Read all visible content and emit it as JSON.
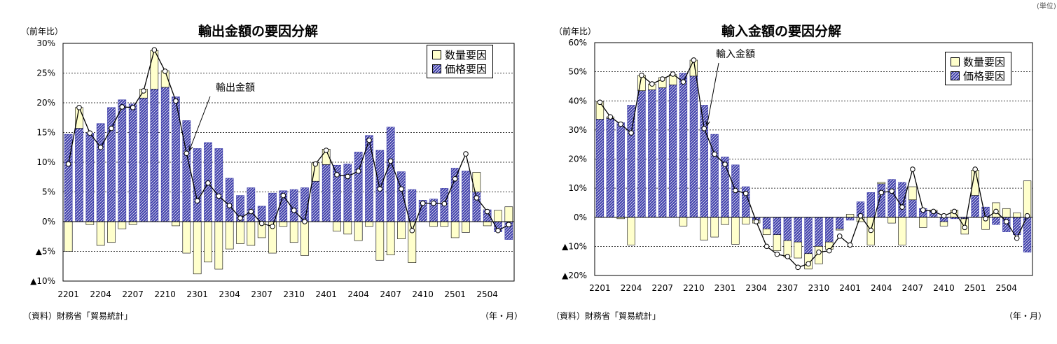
{
  "colors": {
    "volume": "#FFFFCC",
    "price": "#3A3AA8",
    "line": "#000000",
    "marker": "#FFFFFF",
    "grid": "#000000"
  },
  "corner_mark": "(単位)",
  "chart_data": [
    {
      "type": "bar",
      "title": "輸出金額の要因分解",
      "ylabel": "（前年比）",
      "xlabel": "（年・月）",
      "source": "（資料）財務省「貿易統計」",
      "ylim": [
        -10,
        30
      ],
      "yticks": [
        30,
        25,
        20,
        15,
        10,
        5,
        0,
        -5,
        -10
      ],
      "yticklabels": [
        "30%",
        "25%",
        "20%",
        "15%",
        "10%",
        "5%",
        "0%",
        "▲5%",
        "▲10%"
      ],
      "xticklabels": [
        "2201",
        "2204",
        "2207",
        "2210",
        "2301",
        "2304",
        "2307",
        "2310",
        "2401",
        "2404",
        "2407",
        "2410",
        "2501",
        "2504"
      ],
      "grid": "horizontal dashed",
      "legend": {
        "placement": "top-right",
        "entries": [
          "数量要因",
          "価格要因"
        ]
      },
      "annotation": {
        "text": "輸出金額",
        "series": "total"
      },
      "stacked": true,
      "categories": [
        "2201",
        "2202",
        "2203",
        "2204",
        "2205",
        "2206",
        "2207",
        "2208",
        "2209",
        "2210",
        "2211",
        "2212",
        "2301",
        "2302",
        "2303",
        "2304",
        "2305",
        "2306",
        "2307",
        "2308",
        "2309",
        "2310",
        "2311",
        "2312",
        "2401",
        "2402",
        "2403",
        "2404",
        "2405",
        "2406",
        "2407",
        "2408",
        "2409",
        "2410",
        "2411",
        "2412",
        "2501",
        "2502",
        "2503",
        "2504",
        "2505",
        "2506"
      ],
      "series": [
        {
          "name": "数量要因",
          "values": [
            -5,
            3.5,
            -0.5,
            -4,
            -3.5,
            -1.2,
            -0.5,
            1.5,
            6.5,
            2.8,
            -0.7,
            -5.3,
            -8.8,
            -6.8,
            -8,
            -4.6,
            -3.7,
            -4,
            -2.7,
            -5.3,
            -0.8,
            -3.5,
            -5.7,
            3.1,
            2.6,
            -1.6,
            -2.1,
            -3.2,
            -0.8,
            -6.5,
            -5.6,
            -2.9,
            -6.9,
            0,
            -0.8,
            -0.8,
            -2.7,
            -1.8,
            3.3,
            -0.7,
            1.9,
            2.5
          ]
        },
        {
          "name": "価格要因",
          "values": [
            14.7,
            15.7,
            14.9,
            16.5,
            19.2,
            20.5,
            19.8,
            20.8,
            22.3,
            22.6,
            21,
            17,
            12.3,
            13.3,
            12.3,
            7.3,
            4.4,
            5.7,
            2.6,
            4.8,
            5.2,
            5.4,
            5.7,
            6.8,
            9.6,
            9.5,
            9.7,
            11.7,
            14.5,
            12,
            15.9,
            8.4,
            5.4,
            3.6,
            3.8,
            5.6,
            9,
            8.5,
            5,
            2,
            -1.7,
            -3
          ]
        },
        {
          "name": "total",
          "values": [
            9.7,
            19.2,
            14.9,
            12.5,
            15.7,
            19.3,
            19.2,
            22,
            28.9,
            25.3,
            20.3,
            11.5,
            3.5,
            6.5,
            4.3,
            2.7,
            0.6,
            1.7,
            -0.3,
            -0.8,
            4.4,
            1.9,
            0,
            9.7,
            12,
            7.9,
            7.6,
            8.5,
            13.7,
            5.5,
            10.2,
            5.5,
            -1.5,
            3.1,
            3.1,
            3,
            7.2,
            11.4,
            4,
            1.7,
            -1.5,
            -0.5
          ]
        }
      ]
    },
    {
      "type": "bar",
      "title": "輸入金額の要因分解",
      "ylabel": "（前年比）",
      "xlabel": "（年・月）",
      "source": "（資料）財務省「貿易統計」",
      "ylim": [
        -20,
        60
      ],
      "yticks": [
        60,
        50,
        40,
        30,
        20,
        10,
        0,
        -10,
        -20
      ],
      "yticklabels": [
        "60%",
        "50%",
        "40%",
        "30%",
        "20%",
        "10%",
        "0%",
        "▲10%",
        "▲20%"
      ],
      "xticklabels": [
        "2201",
        "2204",
        "2207",
        "2210",
        "2301",
        "2304",
        "2307",
        "2310",
        "2401",
        "2404",
        "2407",
        "2410",
        "2501",
        "2504"
      ],
      "grid": "horizontal dashed",
      "legend": {
        "placement": "top-right",
        "entries": [
          "数量要因",
          "価格要因"
        ]
      },
      "annotation": {
        "text": "輸入金額",
        "series": "total"
      },
      "stacked": true,
      "categories": [
        "2201",
        "2202",
        "2203",
        "2204",
        "2205",
        "2206",
        "2207",
        "2208",
        "2209",
        "2210",
        "2211",
        "2212",
        "2301",
        "2302",
        "2303",
        "2304",
        "2305",
        "2306",
        "2307",
        "2308",
        "2309",
        "2310",
        "2311",
        "2312",
        "2401",
        "2402",
        "2403",
        "2404",
        "2405",
        "2406",
        "2407",
        "2408",
        "2409",
        "2410",
        "2411",
        "2412",
        "2501",
        "2502",
        "2503",
        "2504",
        "2505",
        "2506"
      ],
      "series": [
        {
          "name": "数量要因",
          "values": [
            6,
            0.5,
            -0.5,
            -9.5,
            5.3,
            2,
            3.5,
            3.5,
            -3,
            5.5,
            -7.8,
            -6.8,
            -2.5,
            -9.3,
            -2.3,
            -1,
            -2,
            -5.5,
            -5.7,
            -5.5,
            -5.3,
            -6,
            -2.5,
            -0.4,
            1,
            -1.5,
            -9.5,
            0.5,
            -2,
            -9.5,
            4.5,
            -3.5,
            0.5,
            -1.5,
            2.5,
            -5.3,
            8.7,
            -4.2,
            5,
            3,
            1.5,
            12.5
          ]
        },
        {
          "name": "価格要因",
          "values": [
            33.7,
            34,
            32.5,
            38.5,
            43.5,
            43.8,
            44.5,
            45.5,
            49.5,
            48.5,
            38.5,
            28.5,
            20.7,
            18,
            10.5,
            -1,
            -4,
            -6,
            -8,
            -8.5,
            -12.5,
            -10,
            -8.5,
            -4,
            -1,
            5.3,
            8.5,
            11.5,
            13,
            12,
            6,
            3,
            2,
            -1.5,
            -0.5,
            -0.5,
            7.5,
            3.5,
            -2.5,
            -5,
            -6,
            -12
          ]
        },
        {
          "name": "total",
          "values": [
            39.5,
            34.5,
            32,
            29,
            48.8,
            45.8,
            47.5,
            49.2,
            46.5,
            54,
            30.5,
            21.7,
            18.2,
            9.2,
            8.2,
            -1.5,
            -10,
            -12.7,
            -13.5,
            -17.2,
            -16,
            -12,
            -11.5,
            -6.5,
            -9.5,
            0.5,
            -4.5,
            8.5,
            9,
            3.5,
            16.5,
            2.5,
            2,
            0.5,
            2,
            -3.5,
            16.5,
            -0.5,
            2,
            -1.5,
            -7.2,
            0.5
          ]
        }
      ]
    }
  ]
}
